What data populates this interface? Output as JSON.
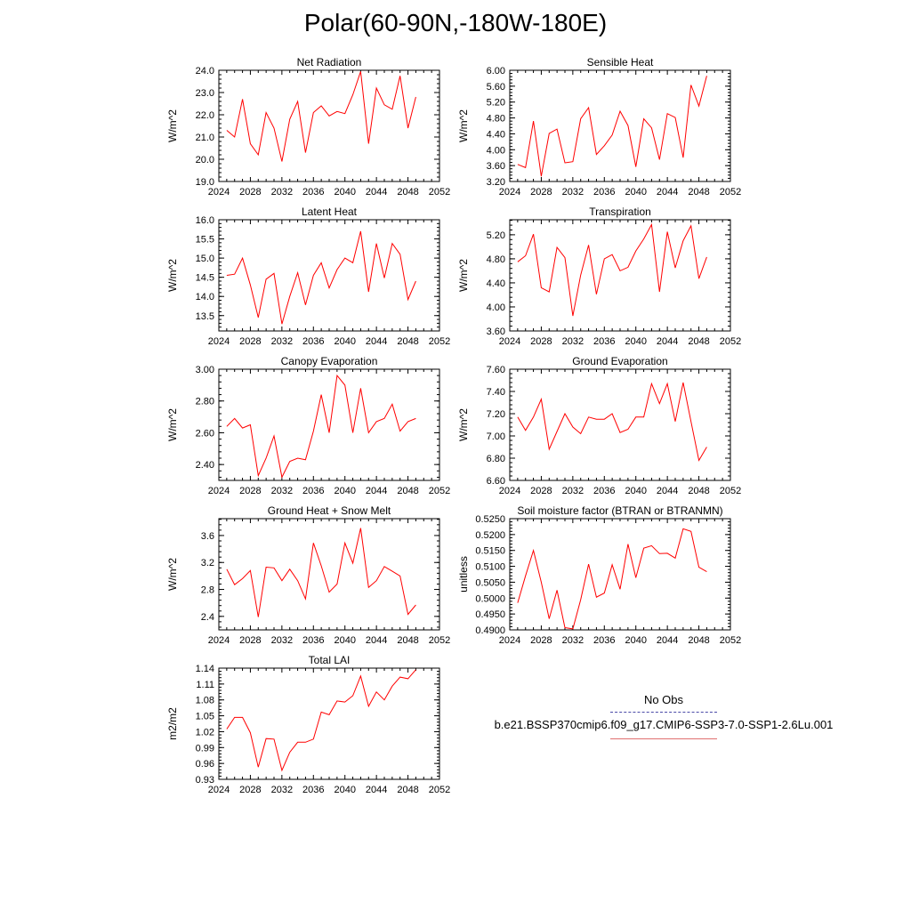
{
  "title": "Polar(60-90N,-180W-180E)",
  "legend": {
    "obs_label": "No Obs",
    "case_label": "b.e21.BSSP370cmip6.f09_g17.CMIP6-SSP3-7.0-SSP1-2.6Lu.001",
    "obs_color": "#4a4aa8",
    "case_color": "#ff0000"
  },
  "chart_data": [
    {
      "type": "line",
      "title": "Net Radiation",
      "ylabel": "W/m^2",
      "xlim": [
        2024,
        2052
      ],
      "xticks": [
        "2024",
        "2028",
        "2032",
        "2036",
        "2040",
        "2044",
        "2048",
        "2052"
      ],
      "ylim": [
        19.0,
        24.0
      ],
      "yticks": [
        "19.0",
        "20.0",
        "21.0",
        "22.0",
        "23.0",
        "24.0"
      ],
      "ytick_values": [
        19.0,
        20.0,
        21.0,
        22.0,
        23.0,
        24.0
      ],
      "color": "#ff0000",
      "x": [
        2025,
        2026,
        2027,
        2028,
        2029,
        2030,
        2031,
        2032,
        2033,
        2034,
        2035,
        2036,
        2037,
        2038,
        2039,
        2040,
        2041,
        2042,
        2043,
        2044,
        2045,
        2046,
        2047,
        2048,
        2049
      ],
      "values": [
        21.3,
        21.0,
        22.7,
        20.7,
        20.2,
        22.1,
        21.4,
        19.9,
        21.8,
        22.6,
        20.3,
        22.1,
        22.4,
        21.95,
        22.15,
        22.05,
        22.9,
        23.95,
        20.7,
        23.2,
        22.45,
        22.25,
        23.75,
        21.4,
        22.8
      ]
    },
    {
      "type": "line",
      "title": "Sensible Heat",
      "ylabel": "W/m^2",
      "xlim": [
        2024,
        2052
      ],
      "xticks": [
        "2024",
        "2028",
        "2032",
        "2036",
        "2040",
        "2044",
        "2048",
        "2052"
      ],
      "ylim": [
        3.2,
        6.0
      ],
      "yticks": [
        "3.20",
        "3.60",
        "4.00",
        "4.40",
        "4.80",
        "5.20",
        "5.60",
        "6.00"
      ],
      "ytick_values": [
        3.2,
        3.6,
        4.0,
        4.4,
        4.8,
        5.2,
        5.6,
        6.0
      ],
      "color": "#ff0000",
      "x": [
        2025,
        2026,
        2027,
        2028,
        2029,
        2030,
        2031,
        2032,
        2033,
        2034,
        2035,
        2036,
        2037,
        2038,
        2039,
        2040,
        2041,
        2042,
        2043,
        2044,
        2045,
        2046,
        2047,
        2048,
        2049
      ],
      "values": [
        3.63,
        3.55,
        4.72,
        3.33,
        4.41,
        4.52,
        3.67,
        3.7,
        4.78,
        5.06,
        3.88,
        4.1,
        4.37,
        4.97,
        4.61,
        3.57,
        4.78,
        4.55,
        3.75,
        4.91,
        4.81,
        3.8,
        5.63,
        5.1,
        5.86
      ]
    },
    {
      "type": "line",
      "title": "Latent Heat",
      "ylabel": "W/m^2",
      "xlim": [
        2024,
        2052
      ],
      "xticks": [
        "2024",
        "2028",
        "2032",
        "2036",
        "2040",
        "2044",
        "2048",
        "2052"
      ],
      "ylim": [
        13.1,
        16.0
      ],
      "yticks": [
        "13.5",
        "14.0",
        "14.5",
        "15.0",
        "15.5",
        "16.0"
      ],
      "ytick_values": [
        13.5,
        14.0,
        14.5,
        15.0,
        15.5,
        16.0
      ],
      "color": "#ff0000",
      "x": [
        2025,
        2026,
        2027,
        2028,
        2029,
        2030,
        2031,
        2032,
        2033,
        2034,
        2035,
        2036,
        2037,
        2038,
        2039,
        2040,
        2041,
        2042,
        2043,
        2044,
        2045,
        2046,
        2047,
        2048,
        2049
      ],
      "values": [
        14.55,
        14.58,
        15.0,
        14.3,
        13.45,
        14.45,
        14.6,
        13.28,
        14.0,
        14.62,
        13.78,
        14.55,
        14.88,
        14.22,
        14.7,
        15.0,
        14.88,
        15.7,
        14.12,
        15.38,
        14.48,
        15.38,
        15.1,
        13.92,
        14.4
      ]
    },
    {
      "type": "line",
      "title": "Transpiration",
      "ylabel": "W/m^2",
      "xlim": [
        2024,
        2052
      ],
      "xticks": [
        "2024",
        "2028",
        "2032",
        "2036",
        "2040",
        "2044",
        "2048",
        "2052"
      ],
      "ylim": [
        3.6,
        5.45
      ],
      "yticks": [
        "3.60",
        "4.00",
        "4.40",
        "4.80",
        "5.20"
      ],
      "ytick_values": [
        3.6,
        4.0,
        4.4,
        4.8,
        5.2
      ],
      "color": "#ff0000",
      "x": [
        2025,
        2026,
        2027,
        2028,
        2029,
        2030,
        2031,
        2032,
        2033,
        2034,
        2035,
        2036,
        2037,
        2038,
        2039,
        2040,
        2041,
        2042,
        2043,
        2044,
        2045,
        2046,
        2047,
        2048,
        2049
      ],
      "values": [
        4.75,
        4.85,
        5.21,
        4.32,
        4.25,
        4.99,
        4.82,
        3.85,
        4.53,
        5.03,
        4.21,
        4.8,
        4.87,
        4.6,
        4.66,
        4.93,
        5.13,
        5.37,
        4.25,
        5.25,
        4.65,
        5.1,
        5.35,
        4.47,
        4.83
      ]
    },
    {
      "type": "line",
      "title": "Canopy Evaporation",
      "ylabel": "W/m^2",
      "xlim": [
        2024,
        2052
      ],
      "xticks": [
        "2024",
        "2028",
        "2032",
        "2036",
        "2040",
        "2044",
        "2048",
        "2052"
      ],
      "ylim": [
        2.3,
        3.0
      ],
      "yticks": [
        "2.40",
        "2.60",
        "2.80",
        "3.00"
      ],
      "ytick_values": [
        2.4,
        2.6,
        2.8,
        3.0
      ],
      "color": "#ff0000",
      "x": [
        2025,
        2026,
        2027,
        2028,
        2029,
        2030,
        2031,
        2032,
        2033,
        2034,
        2035,
        2036,
        2037,
        2038,
        2039,
        2040,
        2041,
        2042,
        2043,
        2044,
        2045,
        2046,
        2047,
        2048,
        2049
      ],
      "values": [
        2.64,
        2.69,
        2.63,
        2.65,
        2.33,
        2.44,
        2.58,
        2.32,
        2.42,
        2.44,
        2.43,
        2.61,
        2.84,
        2.6,
        2.96,
        2.9,
        2.6,
        2.88,
        2.6,
        2.67,
        2.69,
        2.78,
        2.61,
        2.67,
        2.69
      ]
    },
    {
      "type": "line",
      "title": "Ground Evaporation",
      "ylabel": "W/m^2",
      "xlim": [
        2024,
        2052
      ],
      "xticks": [
        "2024",
        "2028",
        "2032",
        "2036",
        "2040",
        "2044",
        "2048",
        "2052"
      ],
      "ylim": [
        6.6,
        7.6
      ],
      "yticks": [
        "6.60",
        "6.80",
        "7.00",
        "7.20",
        "7.40",
        "7.60"
      ],
      "ytick_values": [
        6.6,
        6.8,
        7.0,
        7.2,
        7.4,
        7.6
      ],
      "color": "#ff0000",
      "x": [
        2025,
        2026,
        2027,
        2028,
        2029,
        2030,
        2031,
        2032,
        2033,
        2034,
        2035,
        2036,
        2037,
        2038,
        2039,
        2040,
        2041,
        2042,
        2043,
        2044,
        2045,
        2046,
        2047,
        2048,
        2049
      ],
      "values": [
        7.17,
        7.05,
        7.17,
        7.33,
        6.88,
        7.04,
        7.2,
        7.08,
        7.02,
        7.17,
        7.15,
        7.15,
        7.2,
        7.03,
        7.06,
        7.17,
        7.17,
        7.47,
        7.29,
        7.47,
        7.13,
        7.48,
        7.13,
        6.78,
        6.9
      ]
    },
    {
      "type": "line",
      "title": "Ground Heat + Snow Melt",
      "ylabel": "W/m^2",
      "xlim": [
        2024,
        2052
      ],
      "xticks": [
        "2024",
        "2028",
        "2032",
        "2036",
        "2040",
        "2044",
        "2048",
        "2052"
      ],
      "ylim": [
        2.2,
        3.85
      ],
      "yticks": [
        "2.4",
        "2.8",
        "3.2",
        "3.6"
      ],
      "ytick_values": [
        2.4,
        2.8,
        3.2,
        3.6
      ],
      "color": "#ff0000",
      "x": [
        2025,
        2026,
        2027,
        2028,
        2029,
        2030,
        2031,
        2032,
        2033,
        2034,
        2035,
        2036,
        2037,
        2038,
        2039,
        2040,
        2041,
        2042,
        2043,
        2044,
        2045,
        2046,
        2047,
        2048,
        2049
      ],
      "values": [
        3.1,
        2.87,
        2.96,
        3.08,
        2.39,
        3.13,
        3.12,
        2.93,
        3.1,
        2.93,
        2.66,
        3.49,
        3.15,
        2.76,
        2.88,
        3.49,
        3.19,
        3.71,
        2.83,
        2.93,
        3.14,
        3.07,
        3.0,
        2.43,
        2.57
      ]
    },
    {
      "type": "line",
      "title": "Soil moisture factor (BTRAN or BTRANMN)",
      "ylabel": "unitless",
      "xlim": [
        2024,
        2052
      ],
      "xticks": [
        "2024",
        "2028",
        "2032",
        "2036",
        "2040",
        "2044",
        "2048",
        "2052"
      ],
      "ylim": [
        0.49,
        0.525
      ],
      "yticks": [
        "0.4900",
        "0.4950",
        "0.5000",
        "0.5050",
        "0.5100",
        "0.5150",
        "0.5200",
        "0.5250"
      ],
      "ytick_values": [
        0.49,
        0.495,
        0.5,
        0.505,
        0.51,
        0.515,
        0.52,
        0.525
      ],
      "color": "#ff0000",
      "x": [
        2025,
        2026,
        2027,
        2028,
        2029,
        2030,
        2031,
        2032,
        2033,
        2034,
        2035,
        2036,
        2037,
        2038,
        2039,
        2040,
        2041,
        2042,
        2043,
        2044,
        2045,
        2046,
        2047,
        2048,
        2049
      ],
      "values": [
        0.4985,
        0.507,
        0.515,
        0.505,
        0.4935,
        0.5025,
        0.4907,
        0.4903,
        0.4995,
        0.5107,
        0.5003,
        0.5016,
        0.5105,
        0.5028,
        0.517,
        0.5064,
        0.5157,
        0.5165,
        0.514,
        0.5141,
        0.5126,
        0.5218,
        0.521,
        0.5097,
        0.5083
      ]
    },
    {
      "type": "line",
      "title": "Total LAI",
      "ylabel": "m2/m2",
      "xlim": [
        2024,
        2052
      ],
      "xticks": [
        "2024",
        "2028",
        "2032",
        "2036",
        "2040",
        "2044",
        "2048",
        "2052"
      ],
      "ylim": [
        0.93,
        1.14
      ],
      "yticks": [
        "0.93",
        "0.96",
        "0.99",
        "1.02",
        "1.05",
        "1.08",
        "1.11",
        "1.14"
      ],
      "ytick_values": [
        0.93,
        0.96,
        0.99,
        1.02,
        1.05,
        1.08,
        1.11,
        1.14
      ],
      "color": "#ff0000",
      "x": [
        2025,
        2026,
        2027,
        2028,
        2029,
        2030,
        2031,
        2032,
        2033,
        2034,
        2035,
        2036,
        2037,
        2038,
        2039,
        2040,
        2041,
        2042,
        2043,
        2044,
        2045,
        2046,
        2047,
        2048,
        2049
      ],
      "values": [
        1.025,
        1.047,
        1.047,
        1.018,
        0.953,
        1.007,
        1.006,
        0.947,
        0.981,
        1.0,
        1.0,
        1.006,
        1.057,
        1.052,
        1.078,
        1.076,
        1.088,
        1.125,
        1.068,
        1.095,
        1.08,
        1.106,
        1.123,
        1.12,
        1.137
      ]
    }
  ]
}
